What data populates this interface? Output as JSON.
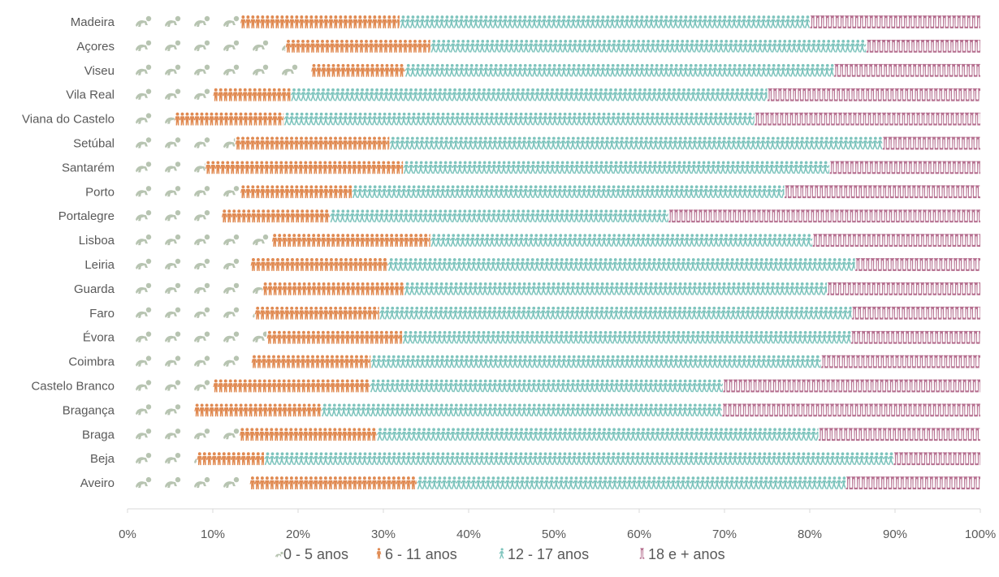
{
  "chart_data": {
    "type": "bar",
    "stacked": "100%",
    "orientation": "horizontal",
    "categories": [
      "Madeira",
      "Açores",
      "Viseu",
      "Vila Real",
      "Viana do Castelo",
      "Setúbal",
      "Santarém",
      "Porto",
      "Portalegre",
      "Lisboa",
      "Leiria",
      "Guarda",
      "Faro",
      "Évora",
      "Coimbra",
      "Castelo Branco",
      "Bragança",
      "Braga",
      "Beja",
      "Aveiro"
    ],
    "series": [
      {
        "name": "0 - 5 anos",
        "color": "#b7c4b1",
        "icon": "crawling-baby-icon",
        "values": [
          13.2,
          18.5,
          21.5,
          10.0,
          5.5,
          12.6,
          9.1,
          13.2,
          11.0,
          16.9,
          14.4,
          15.8,
          14.9,
          16.3,
          14.5,
          10.0,
          7.8,
          13.1,
          8.1,
          14.3
        ]
      },
      {
        "name": "6 - 11 anos",
        "color": "#e08a52",
        "icon": "child-icon",
        "values": [
          18.7,
          17.0,
          11.0,
          9.1,
          12.8,
          18.1,
          23.2,
          13.1,
          12.7,
          18.6,
          16.1,
          16.6,
          14.6,
          15.9,
          14.0,
          18.4,
          14.9,
          16.1,
          7.9,
          19.6
        ]
      },
      {
        "name": "12 - 17 anos",
        "color": "#7ec4bd",
        "icon": "running-child-icon",
        "values": [
          48.1,
          51.1,
          50.3,
          55.9,
          55.2,
          57.8,
          50.0,
          50.7,
          39.7,
          44.8,
          54.8,
          49.6,
          55.4,
          52.6,
          52.8,
          41.4,
          47.0,
          51.8,
          73.8,
          50.3
        ]
      },
      {
        "name": "18 e + anos",
        "color": "#b56f8f",
        "icon": "adult-legs-icon",
        "values": [
          20.0,
          13.4,
          17.2,
          25.0,
          26.5,
          11.5,
          17.7,
          23.0,
          36.6,
          19.7,
          14.7,
          18.0,
          15.1,
          15.2,
          18.7,
          30.2,
          30.3,
          19.0,
          10.2,
          15.8
        ]
      }
    ],
    "xlim": [
      0,
      100
    ],
    "x_ticks": [
      "0%",
      "10%",
      "20%",
      "30%",
      "40%",
      "50%",
      "60%",
      "70%",
      "80%",
      "90%",
      "100%"
    ],
    "x_tick_values": [
      0,
      10,
      20,
      30,
      40,
      50,
      60,
      70,
      80,
      90,
      100
    ],
    "grid": false,
    "legend_position": "bottom",
    "title": "",
    "xlabel": "",
    "ylabel": ""
  }
}
